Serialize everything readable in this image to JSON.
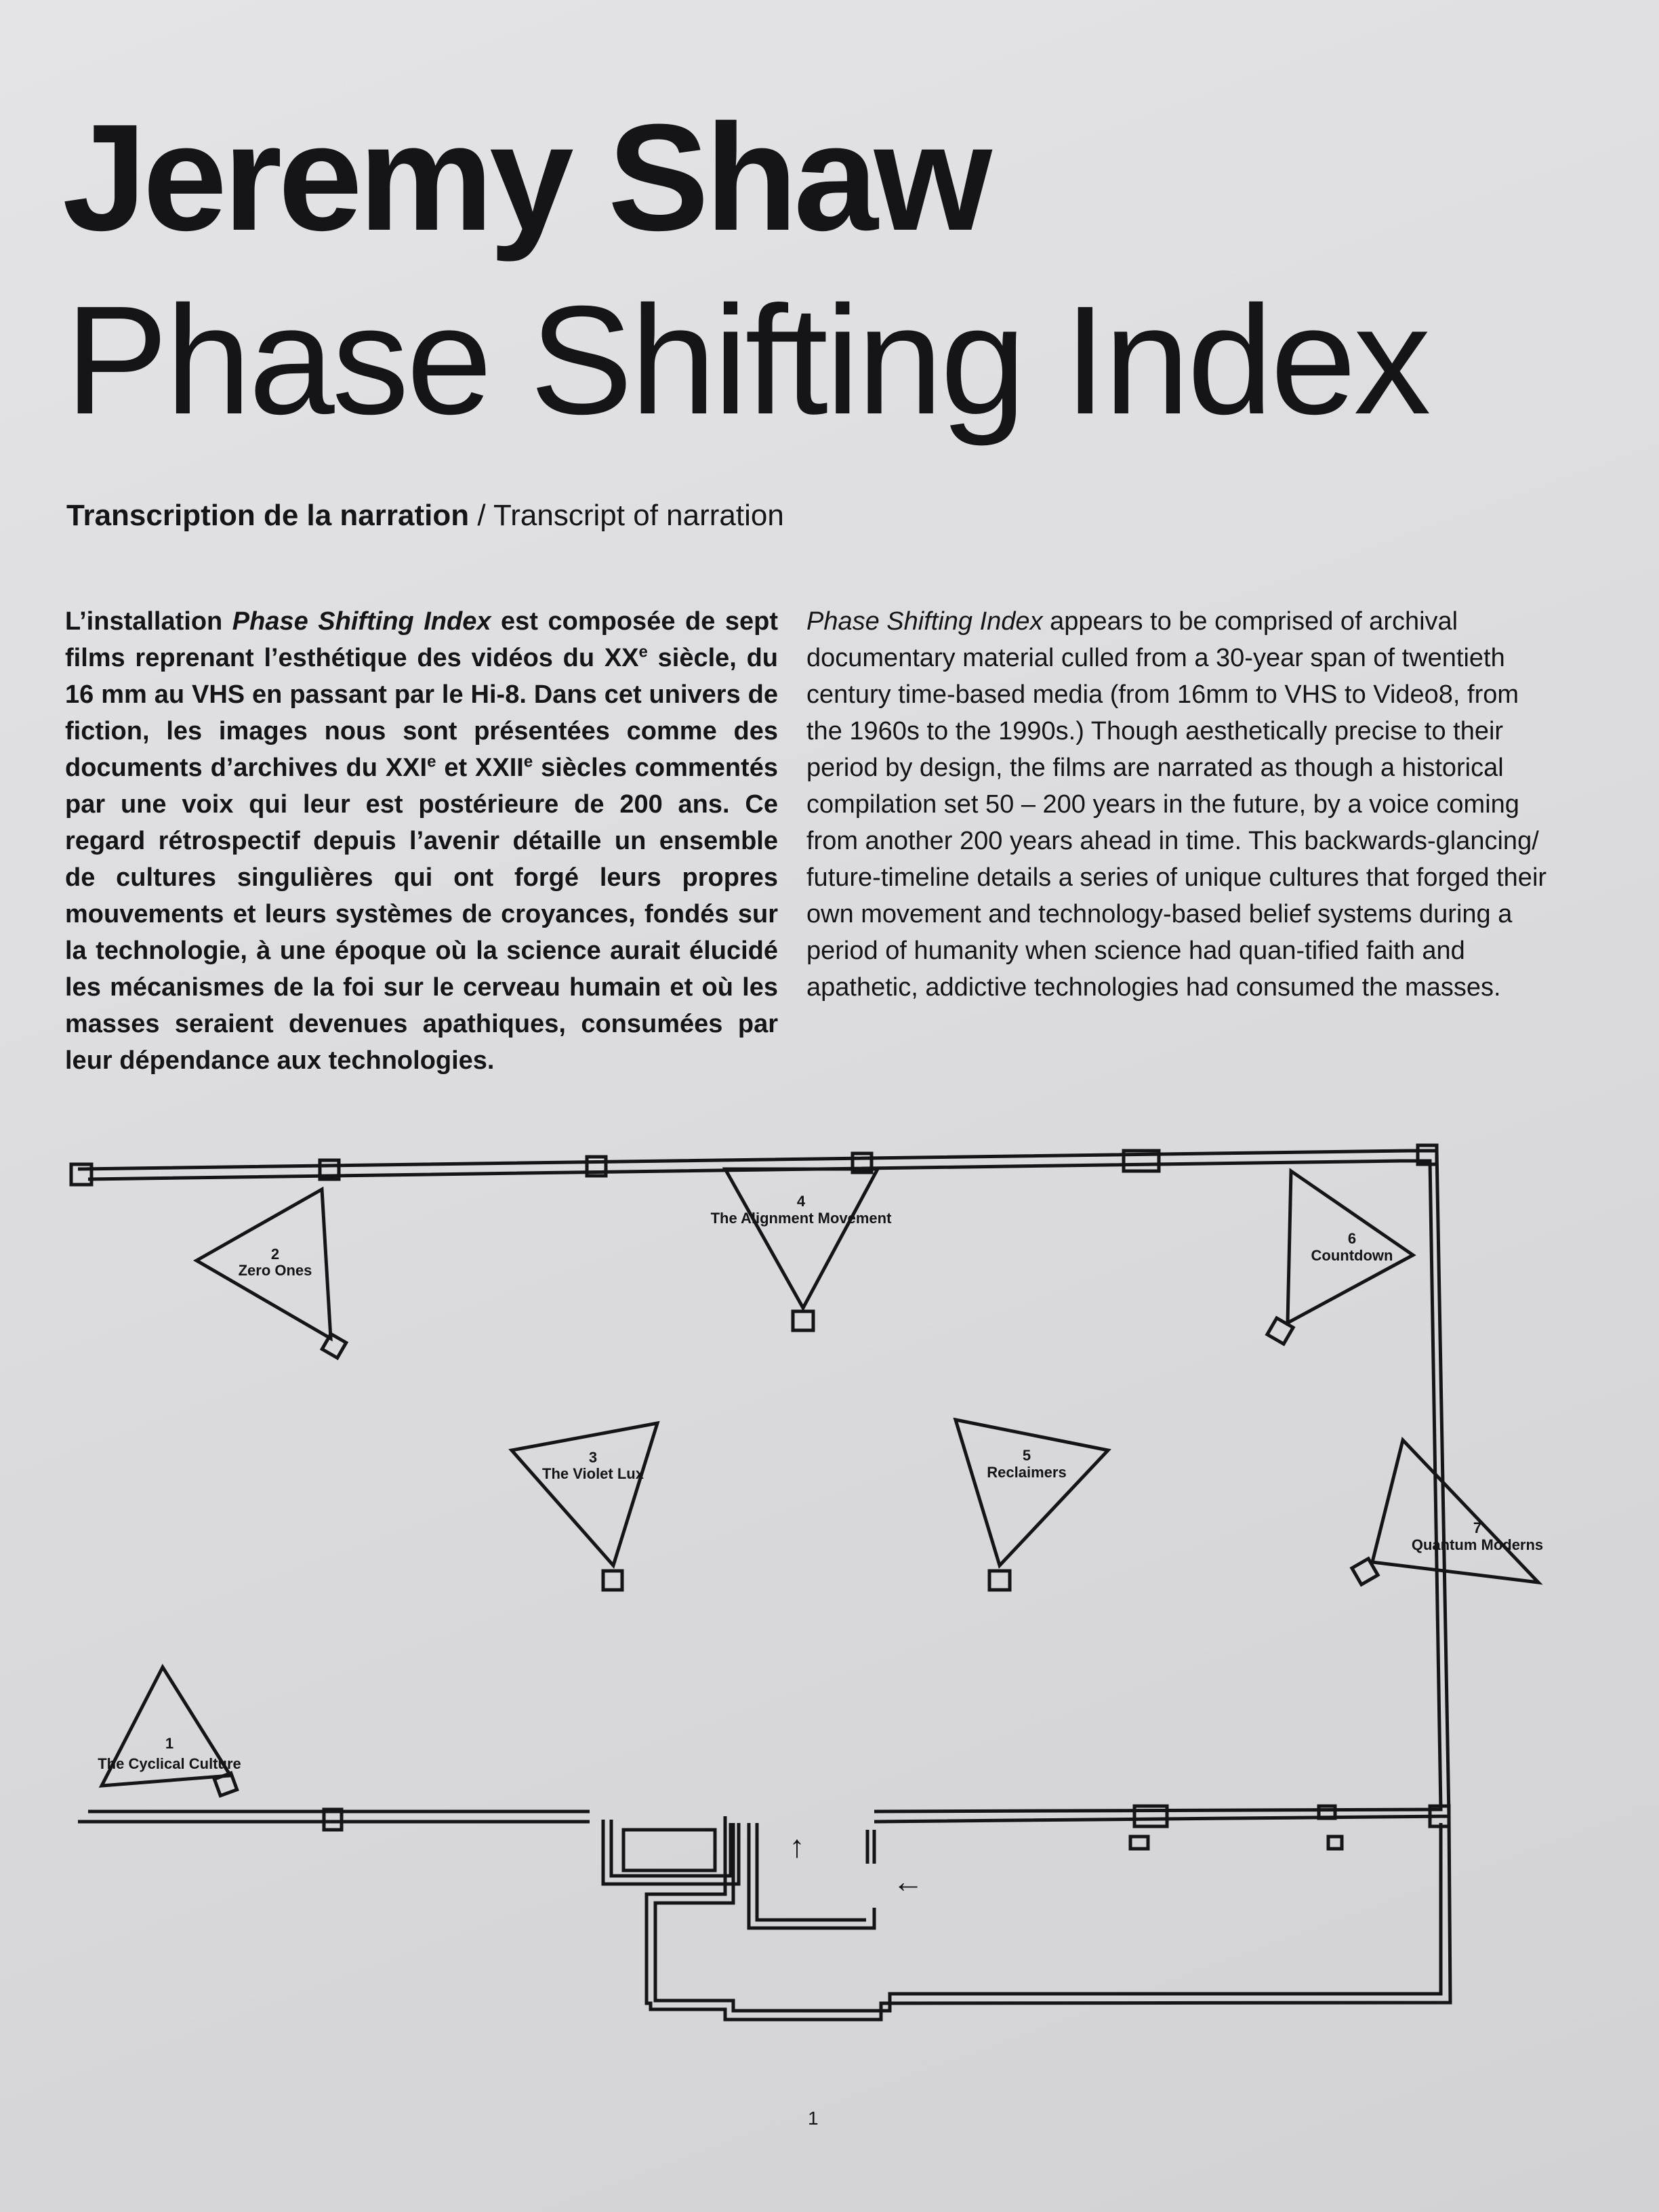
{
  "header": {
    "artist": "Jeremy Shaw",
    "title": "Phase Shifting Index",
    "subtitle_fr": "Transcription de la narration",
    "subtitle_sep": " / ",
    "subtitle_en": "Transcript of narration"
  },
  "body": {
    "fr": {
      "p1": "L’installation ",
      "work": "Phase Shifting Index",
      "p2": " est composée de sept films reprenant l’esthétique des vidéos du XX",
      "sup1": "e",
      "p3": " siècle, du 16 mm au VHS en passant par le Hi-8. Dans cet univers de fiction, les images nous sont présentées comme des documents d’archives du XXI",
      "sup2": "e",
      "p4": " et XXII",
      "sup3": "e",
      "p5": " siècles commentés par une voix qui leur est postérieure de 200 ans. Ce regard rétrospectif depuis l’avenir détaille un ensemble de cultures singulières qui ont forgé leurs propres mouvements et leurs systèmes de croyances, fondés sur la technologie, à une époque où la science aurait élucidé les mécanismes de la foi sur le cerveau humain et où les masses seraient devenues apathiques, consumées par leur dépendance aux technologies."
    },
    "en": {
      "work": "Phase Shifting Index",
      "text": " appears to be comprised of archival documentary material culled from a 30-year span of twentieth century time-based media (from 16mm to VHS to Video8, from the 1960s to the 1990s.) Though aesthetically precise to their period by design, the films are narrated as though a historical compilation set 50 – 200 years in the future, by a voice coming from another 200 years ahead in time. This backwards-glancing/ future-timeline details a series of unique cultures that forged their own movement and technology-based belief systems during a period of humanity when science had quan-tified faith and apathetic, addictive technologies had consumed the masses."
    }
  },
  "floor_plan": {
    "stations": [
      {
        "num": "1",
        "label": "The Cyclical Culture"
      },
      {
        "num": "2",
        "label": "Zero Ones"
      },
      {
        "num": "3",
        "label": "The Violet Lux"
      },
      {
        "num": "4",
        "label": "The Alignment Movement"
      },
      {
        "num": "5",
        "label": "Reclaimers"
      },
      {
        "num": "6",
        "label": "Countdown"
      },
      {
        "num": "7",
        "label": "Quantum Moderns"
      }
    ],
    "arrows": {
      "up": "↑",
      "left": "←"
    }
  },
  "footer": {
    "page_number": "1"
  }
}
